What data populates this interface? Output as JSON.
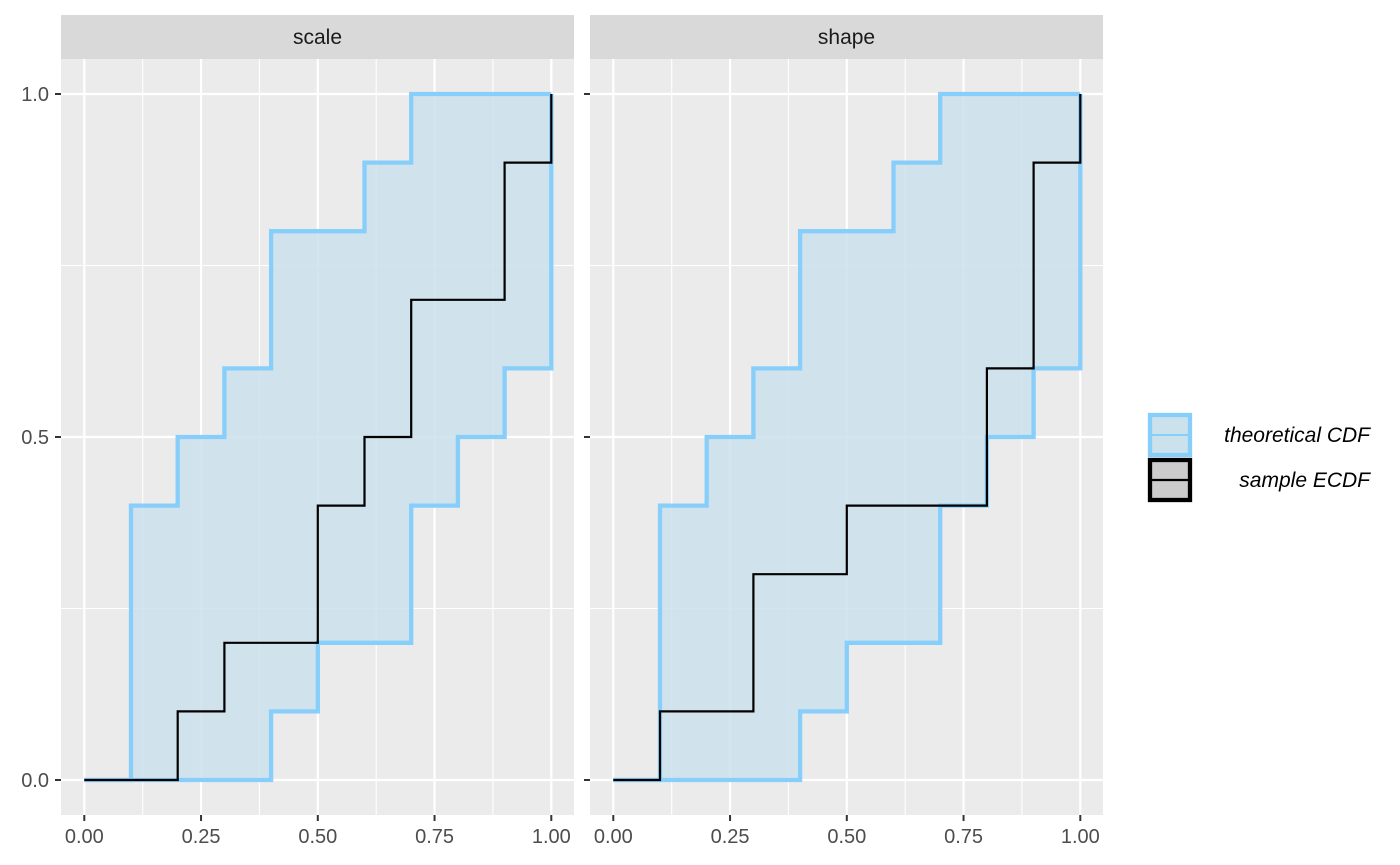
{
  "chart_data": {
    "type": "line",
    "colors": {
      "band_fill": "#cbe2ec",
      "band_line": "#87cefa",
      "ecdf_line": "#000000",
      "panel_bg": "#ebebeb",
      "strip_bg": "#d9d9d9",
      "grid": "#ffffff"
    },
    "x_ticks": [
      "0.00",
      "0.25",
      "0.50",
      "0.75",
      "1.00"
    ],
    "y_ticks": [
      "0.0",
      "0.5",
      "1.0"
    ],
    "xlim": [
      0,
      1
    ],
    "ylim": [
      0,
      1
    ],
    "grid": true,
    "legend_position": "right",
    "legend": [
      {
        "label": "theoretical CDF",
        "kind": "band"
      },
      {
        "label": "sample ECDF",
        "kind": "line"
      }
    ],
    "panels": [
      {
        "label": "scale",
        "x": [
          0,
          0.1,
          0.2,
          0.3,
          0.4,
          0.5,
          0.6,
          0.7,
          0.8,
          0.9,
          1.0
        ],
        "band_upper": [
          0,
          0.4,
          0.5,
          0.6,
          0.8,
          0.8,
          0.9,
          1.0,
          1.0,
          1.0,
          1.0
        ],
        "band_lower": [
          0,
          0,
          0,
          0,
          0.1,
          0.2,
          0.2,
          0.4,
          0.5,
          0.6,
          1.0
        ],
        "ecdf": [
          0,
          0,
          0.1,
          0.2,
          0.2,
          0.4,
          0.5,
          0.7,
          0.7,
          0.9,
          1.0
        ]
      },
      {
        "label": "shape",
        "x": [
          0,
          0.1,
          0.2,
          0.3,
          0.4,
          0.5,
          0.6,
          0.7,
          0.8,
          0.9,
          1.0
        ],
        "band_upper": [
          0,
          0.4,
          0.5,
          0.6,
          0.8,
          0.8,
          0.9,
          1.0,
          1.0,
          1.0,
          1.0
        ],
        "band_lower": [
          0,
          0,
          0,
          0,
          0.1,
          0.2,
          0.2,
          0.4,
          0.5,
          0.6,
          1.0
        ],
        "ecdf": [
          0,
          0.1,
          0.1,
          0.3,
          0.3,
          0.4,
          0.4,
          0.4,
          0.6,
          0.9,
          1.0
        ]
      }
    ]
  }
}
